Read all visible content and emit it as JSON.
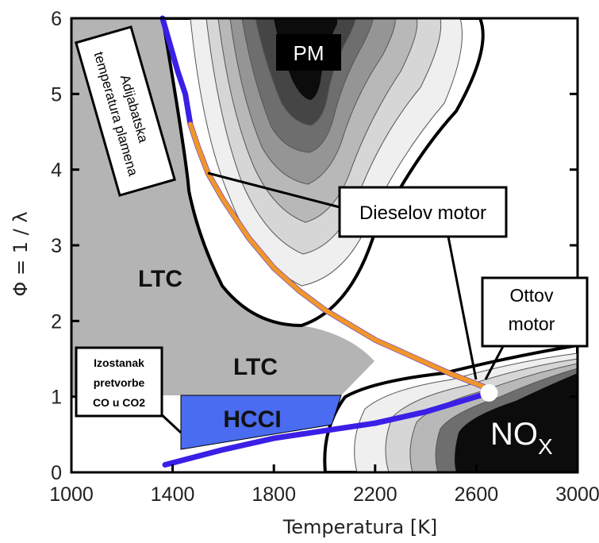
{
  "chart_data": {
    "type": "contour",
    "title": "",
    "xlabel": "Temperatura [K]",
    "ylabel": "Φ = 1 / λ",
    "xlim": [
      1000,
      3000
    ],
    "ylim": [
      0,
      6
    ],
    "x_ticks": [
      "1000",
      "1400",
      "1800",
      "2200",
      "2600",
      "3000"
    ],
    "y_ticks": [
      "0",
      "1",
      "2",
      "3",
      "4",
      "5",
      "6"
    ],
    "grid": false,
    "regions": [
      {
        "name": "PM",
        "label": "PM"
      },
      {
        "name": "NOx",
        "label": "NO",
        "subscript": "X"
      },
      {
        "name": "LTC-upper",
        "label": "LTC"
      },
      {
        "name": "LTC-lower",
        "label": "LTC"
      },
      {
        "name": "HCCI",
        "label": "HCCI",
        "color": "#4a6cf0"
      }
    ],
    "series": [
      {
        "name": "Adijabatska temperatura plamena",
        "color": "#3a1fe6",
        "x": [
          1360,
          1390,
          1420,
          1450,
          1470,
          1500,
          1540,
          1600,
          1700,
          1800,
          1900,
          2000,
          2100,
          2200,
          2300,
          2400,
          2500,
          2600,
          2650
        ],
        "y": [
          6.0,
          5.65,
          5.3,
          5.0,
          4.6,
          4.3,
          3.95,
          3.6,
          3.1,
          2.7,
          2.4,
          2.15,
          1.95,
          1.75,
          1.6,
          1.45,
          1.3,
          1.17,
          1.1
        ]
      },
      {
        "name": "orange-path",
        "color": "#f0962a",
        "x": [
          1470,
          1500,
          1540,
          1600,
          1700,
          1800,
          1900,
          2000,
          2100,
          2200,
          2300,
          2400,
          2500,
          2600,
          2650
        ],
        "y": [
          4.6,
          4.3,
          3.95,
          3.6,
          3.1,
          2.7,
          2.4,
          2.15,
          1.95,
          1.75,
          1.6,
          1.45,
          1.3,
          1.17,
          1.1
        ]
      },
      {
        "name": "lower-boundary",
        "color": "#3a1fe6",
        "x": [
          1370,
          1600,
          1800,
          2000,
          2200,
          2400,
          2550,
          2650
        ],
        "y": [
          0.1,
          0.3,
          0.45,
          0.55,
          0.65,
          0.8,
          0.95,
          1.05
        ]
      }
    ],
    "point": {
      "x": 2650,
      "y": 1.05,
      "color": "#ffffff"
    },
    "annotations": [
      {
        "name": "adijabatska",
        "lines": [
          "Adijabatska",
          "temperatura plamena"
        ]
      },
      {
        "name": "dieselov",
        "lines": [
          "Dieselov motor"
        ]
      },
      {
        "name": "ottov",
        "lines": [
          "Ottov",
          "motor"
        ]
      },
      {
        "name": "izostanak",
        "lines": [
          "Izostanak",
          "pretvorbe",
          "CO u CO2"
        ]
      }
    ],
    "contour_colors": [
      "#ffffff",
      "#efefef",
      "#d6d6d6",
      "#b8b8b8",
      "#959595",
      "#6e6e6e",
      "#454545",
      "#0c0c0c"
    ]
  }
}
